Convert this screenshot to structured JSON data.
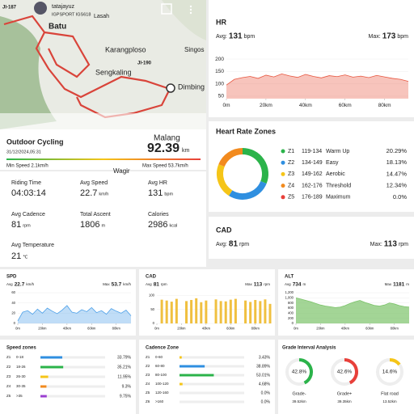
{
  "map": {
    "badge": "JI-187",
    "user": "tatajayuz",
    "device": "IGPSPORT IGS618",
    "places": [
      "Batu",
      "Lasah",
      "Karangploso",
      "Singos",
      "JI-190",
      "Sengkaling",
      "Dimbing",
      "Malang",
      "Wagir"
    ]
  },
  "ride": {
    "type": "Outdoor Cycling",
    "date": "31/12/2024,05:31",
    "distance": "92.39",
    "unit": "km",
    "min_speed": "Min Speed 2.1km/h",
    "max_speed": "Max Speed 53.7km/h"
  },
  "stats": [
    {
      "label": "Riding Time",
      "value": "04:03:14",
      "unit": ""
    },
    {
      "label": "Avg Speed",
      "value": "22.7",
      "unit": "km/h"
    },
    {
      "label": "Avg HR",
      "value": "131",
      "unit": "bpm"
    },
    {
      "label": "Avg Cadence",
      "value": "81",
      "unit": "rpm"
    },
    {
      "label": "Total Ascent",
      "value": "1806",
      "unit": "m"
    },
    {
      "label": "Calories",
      "value": "2986",
      "unit": "kcal"
    },
    {
      "label": "Avg Temperature",
      "value": "21",
      "unit": "℃"
    }
  ],
  "track": {
    "x": [
      0,
      4,
      8,
      12,
      16,
      20,
      24,
      28,
      32,
      36,
      40,
      44,
      48,
      52,
      56,
      60,
      64,
      68,
      72,
      76,
      80,
      84,
      88,
      92
    ],
    "xlim": [
      0,
      92
    ],
    "xticks": [
      {
        "value": 0,
        "label": "0m"
      },
      {
        "value": 20,
        "label": "20km"
      },
      {
        "value": 40,
        "label": "40km"
      },
      {
        "value": 60,
        "label": "60km"
      },
      {
        "value": 80,
        "label": "80km"
      }
    ]
  },
  "hr": {
    "title": "HR",
    "avg_label": "Avg:",
    "avg": "131",
    "avg_unit": "bpm",
    "max_label": "Max:",
    "max": "173",
    "max_unit": "bpm",
    "ylim": [
      40,
      210
    ],
    "yticks": [
      50,
      100,
      150,
      200
    ],
    "values": [
      95,
      118,
      125,
      130,
      122,
      135,
      128,
      140,
      132,
      126,
      138,
      130,
      124,
      133,
      129,
      136,
      127,
      131,
      125,
      134,
      128,
      122,
      118,
      110
    ],
    "color": "#e8563f"
  },
  "hr_zones": {
    "title": "Heart Rate Zones",
    "zones": [
      {
        "zone": "Z1",
        "range": "119-134",
        "name": "Warm Up",
        "pct": {
          "value": 20.29,
          "label": "20.29%"
        },
        "color": "#2bb34a"
      },
      {
        "zone": "Z2",
        "range": "134-149",
        "name": "Easy",
        "pct": {
          "value": 18.13,
          "label": "18.13%"
        },
        "color": "#2f8fe0"
      },
      {
        "zone": "Z3",
        "range": "149-162",
        "name": "Aerobic",
        "pct": {
          "value": 14.47,
          "label": "14.47%"
        },
        "color": "#f5c518"
      },
      {
        "zone": "Z4",
        "range": "162-176",
        "name": "Threshold",
        "pct": {
          "value": 12.34,
          "label": "12.34%"
        },
        "color": "#f28a1e"
      },
      {
        "zone": "Z5",
        "range": "176-189",
        "name": "Maximum",
        "pct": {
          "value": 0.0,
          "label": "0.0%"
        },
        "color": "#e8403a"
      }
    ]
  },
  "cad": {
    "title": "CAD",
    "avg_label": "Avg:",
    "avg": "81",
    "avg_unit": "rpm",
    "max_label": "Max:",
    "max": "113",
    "max_unit": "rpm"
  },
  "mini": [
    {
      "type": "line",
      "title": "SPD",
      "avg_label": "Avg",
      "avg": "22.7",
      "avg_unit": "km/h",
      "max_label": "Max",
      "max": "53.7",
      "max_unit": "km/h",
      "ylim": [
        0,
        60
      ],
      "yticks": [
        0,
        20,
        40,
        60
      ],
      "values": [
        5,
        22,
        25,
        18,
        28,
        20,
        30,
        24,
        19,
        26,
        35,
        22,
        20,
        27,
        23,
        31,
        21,
        25,
        18,
        29,
        24,
        20,
        26,
        15
      ],
      "color": "#4a9fe8"
    },
    {
      "type": "bar",
      "title": "CAD",
      "avg_label": "Avg",
      "avg": "81",
      "avg_unit": "rpm",
      "max_label": "Max",
      "max": "113",
      "max_unit": "rpm",
      "ylim": [
        0,
        110
      ],
      "yticks": [
        0,
        50,
        100
      ],
      "values": [
        0,
        85,
        82,
        78,
        88,
        0,
        80,
        84,
        90,
        76,
        82,
        0,
        86,
        80,
        79,
        85,
        88,
        0,
        82,
        77,
        84,
        80,
        86,
        70
      ],
      "color": "#f0c040"
    },
    {
      "type": "area",
      "title": "ALT",
      "avg_label": "Avg",
      "avg": "734",
      "avg_unit": "m",
      "max_label": "Max",
      "max": "1181",
      "max_unit": "m",
      "ylim": [
        0,
        1200
      ],
      "yticks": [
        0,
        200,
        400,
        600,
        800,
        {
          "value": 1000,
          "label": "1,000"
        },
        {
          "value": 1200,
          "label": "1,200"
        }
      ],
      "values": [
        1000,
        950,
        900,
        850,
        780,
        720,
        680,
        650,
        620,
        640,
        700,
        780,
        850,
        900,
        820,
        760,
        700,
        680,
        720,
        800,
        760,
        700,
        660,
        640
      ],
      "color": "#7cc36a"
    }
  ],
  "speed_zones": {
    "title": "Speed zones",
    "zones": [
      {
        "zone": "Z1",
        "range": "0-18",
        "pct": {
          "value": 33.79,
          "label": "33.79%"
        },
        "color": "#2f8fe0"
      },
      {
        "zone": "Z2",
        "range": "18-26",
        "pct": {
          "value": 35.21,
          "label": "35.21%"
        },
        "color": "#2bb34a"
      },
      {
        "zone": "Z3",
        "range": "26-30",
        "pct": {
          "value": 11.95,
          "label": "11.95%"
        },
        "color": "#f5c518"
      },
      {
        "zone": "Z4",
        "range": "30-35",
        "pct": {
          "value": 9.3,
          "label": "9.3%"
        },
        "color": "#f28a1e"
      },
      {
        "zone": "Z5",
        "range": ">35",
        "pct": {
          "value": 9.75,
          "label": "9.75%"
        },
        "color": "#9b3fd0"
      }
    ]
  },
  "cadence_zones": {
    "title": "Cadence Zone",
    "zones": [
      {
        "zone": "Z1",
        "range": "0-60",
        "pct": {
          "value": 3.43,
          "label": "3.43%"
        },
        "color": "#f5c518"
      },
      {
        "zone": "Z2",
        "range": "60-80",
        "pct": {
          "value": 38.89,
          "label": "38.89%"
        },
        "color": "#2f8fe0"
      },
      {
        "zone": "Z3",
        "range": "80-100",
        "pct": {
          "value": 53.01,
          "label": "53.01%"
        },
        "color": "#2bb34a"
      },
      {
        "zone": "Z4",
        "range": "100-120",
        "pct": {
          "value": 4.68,
          "label": "4.68%"
        },
        "color": "#f5c518"
      },
      {
        "zone": "Z5",
        "range": "120-160",
        "pct": {
          "value": 0.0,
          "label": "0.0%"
        },
        "color": "#f28a1e"
      },
      {
        "zone": "Z6",
        "range": ">160",
        "pct": {
          "value": 0.0,
          "label": "0.0%"
        },
        "color": "#e8403a"
      }
    ]
  },
  "grade": {
    "title": "Grade Interval Analysis",
    "items": [
      {
        "pct": {
          "value": 42.8,
          "label": "42.8%"
        },
        "name": "Grade-",
        "dist": "39.52km",
        "color": "#2bb34a"
      },
      {
        "pct": {
          "value": 42.6,
          "label": "42.6%"
        },
        "name": "Grade+",
        "dist": "39.35km",
        "color": "#e8403a"
      },
      {
        "pct": {
          "value": 14.6,
          "label": "14.6%"
        },
        "name": "Flat road",
        "dist": "13.52km",
        "color": "#f5c518"
      }
    ]
  }
}
